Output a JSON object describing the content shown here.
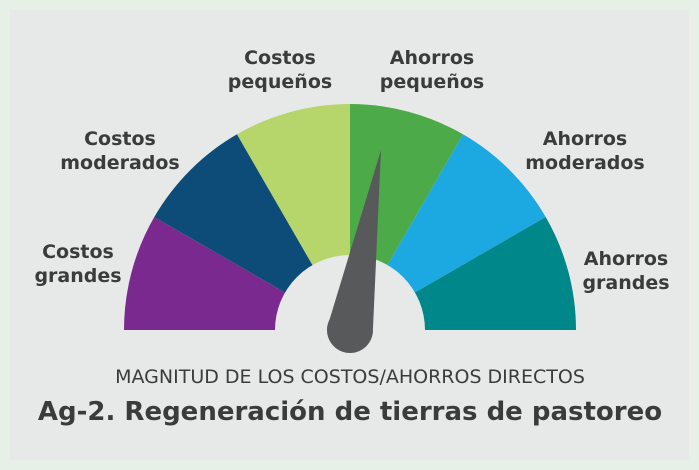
{
  "gauge": {
    "segments": [
      {
        "label": [
          "Costos",
          "grandes"
        ],
        "color": "#7a2a8e"
      },
      {
        "label": [
          "Costos",
          "moderados"
        ],
        "color": "#0d4b79"
      },
      {
        "label": [
          "Costos",
          "pequeños"
        ],
        "color": "#b6d56b"
      },
      {
        "label": [
          "Ahorros",
          "pequeños"
        ],
        "color": "#4cab48"
      },
      {
        "label": [
          "Ahorros",
          "moderados"
        ],
        "color": "#1ca8e1"
      },
      {
        "label": [
          "Ahorros",
          "grandes"
        ],
        "color": "#008789"
      }
    ],
    "caption": "MAGNITUD DE LOS COSTOS/AHORROS DIRECTOS",
    "title": "Ag-2. Regeneración de tierras de pastoreo"
  }
}
